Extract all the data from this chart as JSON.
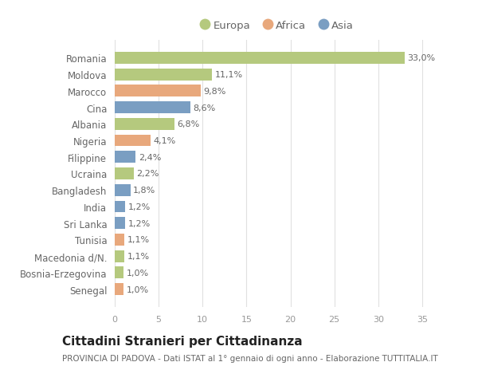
{
  "countries": [
    "Romania",
    "Moldova",
    "Marocco",
    "Cina",
    "Albania",
    "Nigeria",
    "Filippine",
    "Ucraina",
    "Bangladesh",
    "India",
    "Sri Lanka",
    "Tunisia",
    "Macedonia d/N.",
    "Bosnia-Erzegovina",
    "Senegal"
  ],
  "values": [
    33.0,
    11.1,
    9.8,
    8.6,
    6.8,
    4.1,
    2.4,
    2.2,
    1.8,
    1.2,
    1.2,
    1.1,
    1.1,
    1.0,
    1.0
  ],
  "labels": [
    "33,0%",
    "11,1%",
    "9,8%",
    "8,6%",
    "6,8%",
    "4,1%",
    "2,4%",
    "2,2%",
    "1,8%",
    "1,2%",
    "1,2%",
    "1,1%",
    "1,1%",
    "1,0%",
    "1,0%"
  ],
  "continent": [
    "Europa",
    "Europa",
    "Africa",
    "Asia",
    "Europa",
    "Africa",
    "Asia",
    "Europa",
    "Asia",
    "Asia",
    "Asia",
    "Africa",
    "Europa",
    "Europa",
    "Africa"
  ],
  "colors": {
    "Europa": "#b5c97e",
    "Africa": "#e8a87c",
    "Asia": "#7a9ec2"
  },
  "title": "Cittadini Stranieri per Cittadinanza",
  "subtitle": "PROVINCIA DI PADOVA - Dati ISTAT al 1° gennaio di ogni anno - Elaborazione TUTTITALIA.IT",
  "xlim": [
    0,
    37
  ],
  "xticks": [
    0,
    5,
    10,
    15,
    20,
    25,
    30,
    35
  ],
  "bg_color": "#ffffff",
  "grid_color": "#e0e0e0",
  "bar_height": 0.72,
  "label_fontsize": 8.0,
  "tick_fontsize": 8.0,
  "ytick_fontsize": 8.5,
  "title_fontsize": 11,
  "subtitle_fontsize": 7.5
}
